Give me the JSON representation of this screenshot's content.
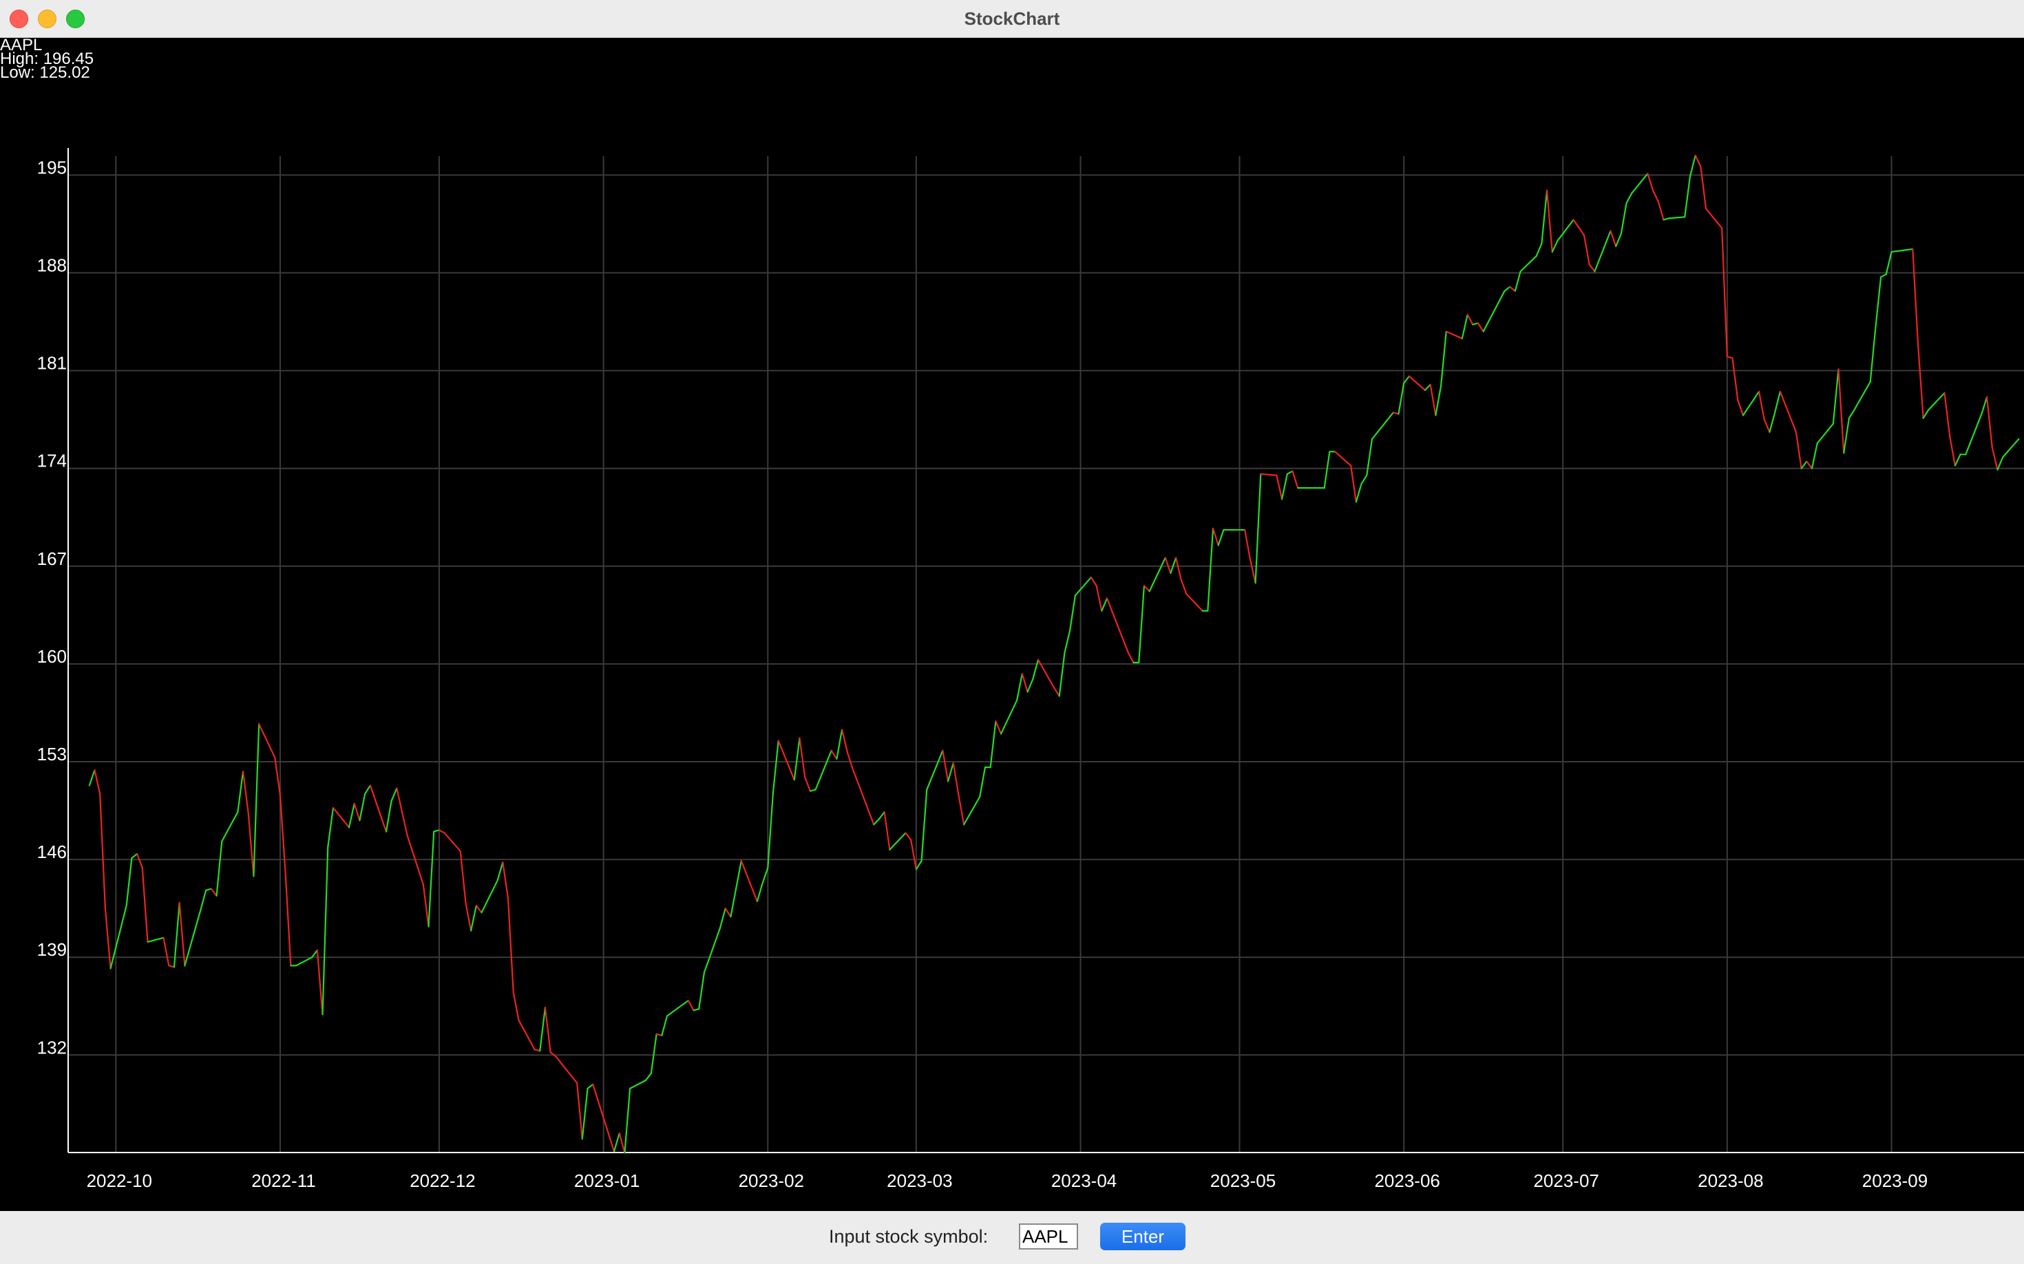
{
  "window": {
    "title": "StockChart"
  },
  "info": {
    "symbol": "AAPL",
    "high": "High: 196.45",
    "low": "Low: 125.02"
  },
  "controls": {
    "input_label": "Input stock symbol:",
    "symbol_value": "AAPL",
    "enter_label": "Enter"
  },
  "colors": {
    "background": "#000000",
    "grid": "#3a3a3a",
    "up": "#22dd22",
    "down": "#ee2222",
    "text": "#ffffff"
  },
  "chart_data": {
    "type": "line",
    "series": [
      {
        "name": "AAPL",
        "x": [
          "2022-09-26",
          "2022-09-27",
          "2022-09-28",
          "2022-09-29",
          "2022-09-30",
          "2022-10-03",
          "2022-10-04",
          "2022-10-05",
          "2022-10-06",
          "2022-10-07",
          "2022-10-10",
          "2022-10-11",
          "2022-10-12",
          "2022-10-13",
          "2022-10-14",
          "2022-10-17",
          "2022-10-18",
          "2022-10-19",
          "2022-10-20",
          "2022-10-21",
          "2022-10-24",
          "2022-10-25",
          "2022-10-26",
          "2022-10-27",
          "2022-10-28",
          "2022-10-31",
          "2022-11-01",
          "2022-11-02",
          "2022-11-03",
          "2022-11-04",
          "2022-11-07",
          "2022-11-08",
          "2022-11-09",
          "2022-11-10",
          "2022-11-11",
          "2022-11-14",
          "2022-11-15",
          "2022-11-16",
          "2022-11-17",
          "2022-11-18",
          "2022-11-21",
          "2022-11-22",
          "2022-11-23",
          "2022-11-25",
          "2022-11-28",
          "2022-11-29",
          "2022-11-30",
          "2022-12-01",
          "2022-12-02",
          "2022-12-05",
          "2022-12-06",
          "2022-12-07",
          "2022-12-08",
          "2022-12-09",
          "2022-12-12",
          "2022-12-13",
          "2022-12-14",
          "2022-12-15",
          "2022-12-16",
          "2022-12-19",
          "2022-12-20",
          "2022-12-21",
          "2022-12-22",
          "2022-12-23",
          "2022-12-27",
          "2022-12-28",
          "2022-12-29",
          "2022-12-30",
          "2023-01-03",
          "2023-01-04",
          "2023-01-05",
          "2023-01-06",
          "2023-01-09",
          "2023-01-10",
          "2023-01-11",
          "2023-01-12",
          "2023-01-13",
          "2023-01-17",
          "2023-01-18",
          "2023-01-19",
          "2023-01-20",
          "2023-01-23",
          "2023-01-24",
          "2023-01-25",
          "2023-01-26",
          "2023-01-27",
          "2023-01-30",
          "2023-01-31",
          "2023-02-01",
          "2023-02-02",
          "2023-02-03",
          "2023-02-06",
          "2023-02-07",
          "2023-02-08",
          "2023-02-09",
          "2023-02-10",
          "2023-02-13",
          "2023-02-14",
          "2023-02-15",
          "2023-02-16",
          "2023-02-17",
          "2023-02-21",
          "2023-02-22",
          "2023-02-23",
          "2023-02-24",
          "2023-02-27",
          "2023-02-28",
          "2023-03-01",
          "2023-03-02",
          "2023-03-03",
          "2023-03-06",
          "2023-03-07",
          "2023-03-08",
          "2023-03-09",
          "2023-03-10",
          "2023-03-13",
          "2023-03-14",
          "2023-03-15",
          "2023-03-16",
          "2023-03-17",
          "2023-03-20",
          "2023-03-21",
          "2023-03-22",
          "2023-03-23",
          "2023-03-24",
          "2023-03-27",
          "2023-03-28",
          "2023-03-29",
          "2023-03-30",
          "2023-03-31",
          "2023-04-03",
          "2023-04-04",
          "2023-04-05",
          "2023-04-06",
          "2023-04-10",
          "2023-04-11",
          "2023-04-12",
          "2023-04-13",
          "2023-04-14",
          "2023-04-17",
          "2023-04-18",
          "2023-04-19",
          "2023-04-20",
          "2023-04-21",
          "2023-04-24",
          "2023-04-25",
          "2023-04-26",
          "2023-04-27",
          "2023-04-28",
          "2023-05-01",
          "2023-05-02",
          "2023-05-03",
          "2023-05-04",
          "2023-05-05",
          "2023-05-08",
          "2023-05-09",
          "2023-05-10",
          "2023-05-11",
          "2023-05-12",
          "2023-05-15",
          "2023-05-16",
          "2023-05-17",
          "2023-05-18",
          "2023-05-19",
          "2023-05-22",
          "2023-05-23",
          "2023-05-24",
          "2023-05-25",
          "2023-05-26",
          "2023-05-30",
          "2023-05-31",
          "2023-06-01",
          "2023-06-02",
          "2023-06-05",
          "2023-06-06",
          "2023-06-07",
          "2023-06-08",
          "2023-06-09",
          "2023-06-12",
          "2023-06-13",
          "2023-06-14",
          "2023-06-15",
          "2023-06-16",
          "2023-06-20",
          "2023-06-21",
          "2023-06-22",
          "2023-06-23",
          "2023-06-26",
          "2023-06-27",
          "2023-06-28",
          "2023-06-29",
          "2023-06-30",
          "2023-07-03",
          "2023-07-05",
          "2023-07-06",
          "2023-07-07",
          "2023-07-10",
          "2023-07-11",
          "2023-07-12",
          "2023-07-13",
          "2023-07-14",
          "2023-07-17",
          "2023-07-18",
          "2023-07-19",
          "2023-07-20",
          "2023-07-21",
          "2023-07-24",
          "2023-07-25",
          "2023-07-26",
          "2023-07-27",
          "2023-07-28",
          "2023-07-31",
          "2023-08-01",
          "2023-08-02",
          "2023-08-03",
          "2023-08-04",
          "2023-08-07",
          "2023-08-08",
          "2023-08-09",
          "2023-08-10",
          "2023-08-11",
          "2023-08-14",
          "2023-08-15",
          "2023-08-16",
          "2023-08-17",
          "2023-08-18",
          "2023-08-21",
          "2023-08-22",
          "2023-08-23",
          "2023-08-24",
          "2023-08-25",
          "2023-08-28",
          "2023-08-29",
          "2023-08-30",
          "2023-08-31",
          "2023-09-01",
          "2023-09-05",
          "2023-09-06",
          "2023-09-07",
          "2023-09-08",
          "2023-09-11",
          "2023-09-12",
          "2023-09-13",
          "2023-09-14",
          "2023-09-15",
          "2023-09-18",
          "2023-09-19",
          "2023-09-20",
          "2023-09-21",
          "2023-09-22",
          "2023-09-25"
        ],
        "y": [
          151.3,
          152.4,
          150.7,
          142.5,
          138.2,
          142.7,
          146.1,
          146.4,
          145.4,
          140.1,
          140.4,
          138.4,
          138.3,
          142.9,
          138.4,
          142.4,
          143.8,
          143.9,
          143.4,
          147.3,
          149.4,
          152.3,
          149.3,
          144.8,
          155.7,
          153.3,
          150.6,
          145.0,
          138.4,
          138.4,
          139.0,
          139.5,
          134.9,
          146.9,
          149.7,
          148.3,
          150.0,
          148.8,
          150.7,
          151.3,
          148.0,
          150.2,
          151.1,
          147.7,
          144.2,
          141.2,
          148.0,
          148.1,
          147.9,
          146.6,
          142.9,
          140.9,
          142.7,
          142.2,
          144.5,
          145.8,
          143.2,
          136.5,
          134.5,
          132.4,
          132.3,
          135.4,
          132.2,
          131.9,
          130.0,
          126.0,
          129.6,
          129.9,
          125.1,
          126.4,
          125.0,
          129.6,
          130.2,
          130.7,
          133.5,
          133.4,
          134.8,
          135.9,
          135.2,
          135.3,
          137.9,
          141.1,
          142.5,
          141.9,
          143.9,
          145.9,
          143.0,
          144.3,
          145.4,
          150.8,
          154.5,
          151.7,
          154.7,
          151.9,
          150.9,
          151.0,
          153.8,
          153.2,
          155.3,
          153.7,
          152.5,
          148.5,
          148.9,
          149.4,
          146.7,
          147.9,
          147.4,
          145.3,
          145.9,
          151.0,
          153.8,
          151.6,
          152.9,
          150.6,
          148.5,
          150.5,
          152.6,
          152.6,
          155.9,
          155.0,
          157.4,
          159.3,
          158.0,
          158.9,
          160.3,
          158.3,
          157.7,
          160.8,
          162.4,
          164.9,
          166.2,
          165.6,
          163.8,
          164.7,
          160.8,
          160.1,
          160.1,
          165.6,
          165.2,
          167.6,
          166.5,
          167.6,
          166.0,
          165.0,
          163.8,
          163.8,
          169.7,
          168.5,
          169.6,
          169.6,
          169.6,
          167.5,
          165.8,
          173.6,
          173.5,
          171.8,
          173.6,
          173.8,
          172.6,
          172.6,
          172.6,
          172.6,
          175.2,
          175.2,
          174.2,
          171.6,
          172.9,
          173.5,
          176.1,
          178.0,
          177.9,
          180.1,
          180.6,
          179.6,
          180.0,
          177.8,
          179.9,
          183.8,
          183.3,
          185.0,
          184.3,
          184.4,
          183.8,
          186.7,
          187.0,
          186.7,
          188.1,
          189.2,
          190.1,
          193.9,
          189.5,
          190.3,
          191.8,
          190.7,
          188.6,
          188.1,
          191.0,
          189.9,
          190.8,
          193.0,
          193.7,
          195.1,
          193.9,
          193.1,
          191.8,
          191.9,
          192.0,
          194.9,
          196.4,
          195.6,
          192.6,
          191.2,
          182.0,
          181.9,
          178.9,
          177.8,
          179.5,
          177.5,
          176.6,
          178.0,
          179.5,
          176.6,
          174.0,
          174.5,
          174.0,
          175.8,
          177.2,
          181.1,
          175.1,
          177.6,
          178.2,
          180.2,
          184.1,
          187.7,
          187.9,
          189.5,
          189.7,
          182.9,
          177.6,
          178.2,
          179.4,
          176.3,
          174.2,
          175.0,
          175.0,
          177.9,
          179.1,
          175.5,
          173.9,
          174.8,
          176.1
        ]
      }
    ],
    "title": "",
    "x_tick_labels": [
      "2022-10",
      "2022-11",
      "2022-12",
      "2023-01",
      "2023-02",
      "2023-03",
      "2023-04",
      "2023-05",
      "2023-06",
      "2023-07",
      "2023-08",
      "2023-09"
    ],
    "x_ticks": [
      "2022-10-01",
      "2022-11-01",
      "2022-12-01",
      "2023-01-01",
      "2023-02-01",
      "2023-03-01",
      "2023-04-01",
      "2023-05-01",
      "2023-06-01",
      "2023-07-01",
      "2023-08-01",
      "2023-09-01"
    ],
    "y_ticks": [
      132,
      139,
      146,
      153,
      160,
      167,
      174,
      181,
      188,
      195
    ],
    "xlim": [
      "2022-09-22",
      "2023-09-26"
    ],
    "ylim": [
      125.02,
      196.45
    ],
    "grid": true,
    "xlabel": "",
    "ylabel": ""
  }
}
